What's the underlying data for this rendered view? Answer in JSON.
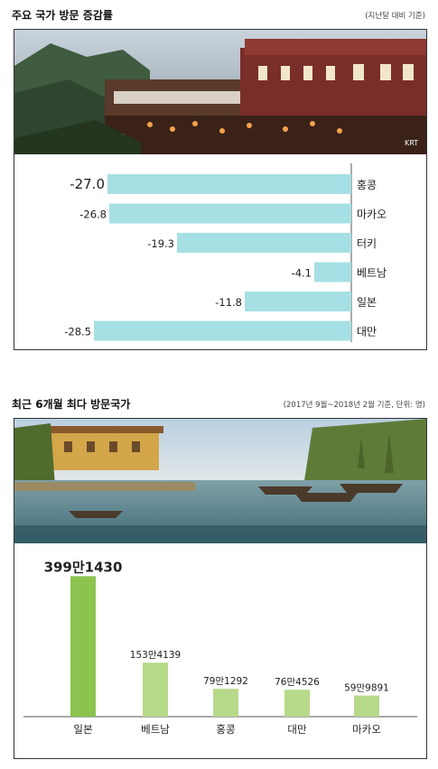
{
  "section1": {
    "title": "주요 국가 방문 증감률",
    "note": "(지난달 대비 기준)",
    "photo_label": "town-on-hillside-night-photo",
    "photo_credit": "KRT"
  },
  "section2": {
    "title": "최근 6개월 최다 방문국가",
    "note": "(2017년 9월~2018년 2월 기준, 단위: 명)",
    "photo_label": "river-with-boats-photo"
  },
  "chart_data": [
    {
      "type": "bar",
      "orientation": "horizontal",
      "title": "주요 국가 방문 증감률",
      "categories": [
        "홍콩",
        "마카오",
        "터키",
        "베트남",
        "일본",
        "대만"
      ],
      "values": [
        -27.0,
        -26.8,
        -19.3,
        -4.1,
        -11.8,
        -28.5
      ],
      "value_labels": [
        "-27.0",
        "-26.8",
        "-19.3",
        "-4.1",
        "-11.8",
        "-28.5"
      ],
      "xlim": [
        -30,
        0
      ],
      "color": "#a6e0e4",
      "grid": false
    },
    {
      "type": "bar",
      "title": "최근 6개월 최다 방문국가",
      "categories": [
        "일본",
        "베트남",
        "홍콩",
        "대만",
        "마카오"
      ],
      "values": [
        3991430,
        1534139,
        791292,
        764526,
        599891
      ],
      "value_labels": [
        "399만1430",
        "153만4139",
        "79만1292",
        "76만4526",
        "59만9891"
      ],
      "ylim": [
        0,
        4000000
      ],
      "colors": [
        "#8cc34f",
        "#b7d98a",
        "#b7d98a",
        "#b7d98a",
        "#b7d98a"
      ],
      "grid": false
    }
  ]
}
